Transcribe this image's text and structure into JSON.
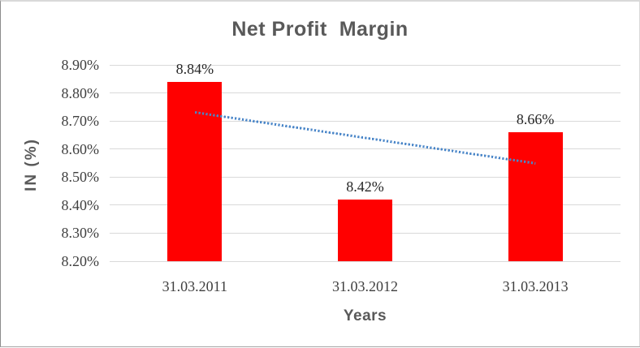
{
  "chart_data": {
    "type": "bar",
    "title": "Net Profit  Margin",
    "xlabel": "Years",
    "ylabel": "IN (%)",
    "categories": [
      "31.03.2011",
      "31.03.2012",
      "31.03.2013"
    ],
    "values": [
      8.84,
      8.42,
      8.66
    ],
    "data_labels": [
      "8.84%",
      "8.42%",
      "8.66%"
    ],
    "ylim": [
      8.2,
      8.9
    ],
    "ytick_step": 0.1,
    "ytick_labels": [
      "8.90%",
      "8.80%",
      "8.70%",
      "8.60%",
      "8.50%",
      "8.40%",
      "8.30%",
      "8.20%"
    ],
    "grid": true,
    "legend": false,
    "bar_color": "#FF0000",
    "gridline_color": "#D9D9D9",
    "trendline": {
      "type": "linear",
      "style": "dotted",
      "color": "#4A86C8",
      "start_value": 8.731,
      "end_value": 8.549
    },
    "text_colors": {
      "title": "#595959",
      "axis_titles": "#595959",
      "tick_labels": "#3F3F3F",
      "data_labels": "#262626"
    }
  }
}
